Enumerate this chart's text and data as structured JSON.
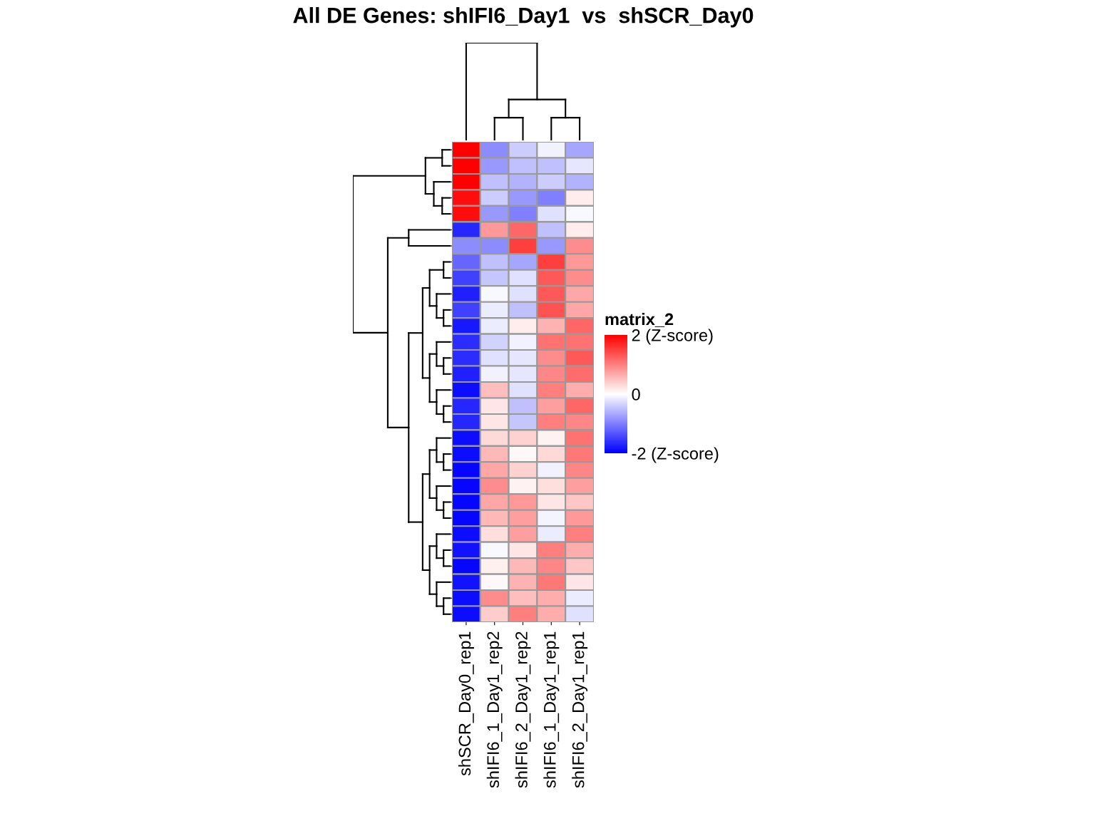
{
  "chart_data": {
    "type": "heatmap",
    "title": "All DE Genes: shIFI6_Day1  vs  shSCR_Day0",
    "legend_title": "matrix_2",
    "categories": [
      "shSCR_Day0_rep1",
      "shIFI6_1_Day1_rep2",
      "shIFI6_2_Day1_rep2",
      "shIFI6_1_Day1_rep1",
      "shIFI6_2_Day1_rep1"
    ],
    "y_categories": [
      null,
      null,
      null,
      null,
      null,
      null,
      null,
      null,
      null,
      null,
      null,
      null,
      null,
      null,
      null,
      null,
      null,
      null,
      null,
      null,
      null,
      null,
      null,
      null,
      null,
      null,
      null,
      null,
      null,
      null
    ],
    "colors": [
      "#0000ff",
      "#ffffff",
      "#ff0000"
    ],
    "clim": [
      -2,
      2
    ],
    "cticks": [
      {
        "value": -2,
        "label": "-2 (Z-score)"
      },
      0,
      {
        "value": 2,
        "label": "2 (Z-score)"
      }
    ],
    "cells": [
      [
        2.0,
        -0.9,
        -0.4,
        -0.1,
        -0.7
      ],
      [
        2.0,
        -0.8,
        -0.5,
        -0.5,
        -0.2
      ],
      [
        2.0,
        -0.5,
        -0.6,
        -0.4,
        -0.6
      ],
      [
        1.9,
        -0.4,
        -0.8,
        -1.0,
        0.15
      ],
      [
        1.9,
        -0.8,
        -1.0,
        -0.25,
        -0.05
      ],
      [
        -1.7,
        0.8,
        1.2,
        -0.5,
        0.15
      ],
      [
        -0.9,
        -0.9,
        1.5,
        -0.8,
        0.9
      ],
      [
        -1.2,
        -0.5,
        -0.7,
        1.5,
        0.8
      ],
      [
        -1.5,
        -0.45,
        -0.25,
        1.3,
        0.9
      ],
      [
        -1.75,
        -0.05,
        -0.25,
        1.3,
        0.7
      ],
      [
        -1.5,
        -0.15,
        -0.5,
        1.35,
        0.7
      ],
      [
        -1.8,
        -0.15,
        0.15,
        0.6,
        1.2
      ],
      [
        -1.65,
        -0.35,
        -0.1,
        1.1,
        1.1
      ],
      [
        -1.65,
        -0.25,
        -0.2,
        0.9,
        1.3
      ],
      [
        -1.75,
        -0.1,
        -0.2,
        0.95,
        1.15
      ],
      [
        -1.9,
        0.5,
        -0.25,
        1.0,
        0.65
      ],
      [
        -1.7,
        0.2,
        -0.5,
        0.75,
        1.2
      ],
      [
        -1.7,
        0.2,
        -0.45,
        1.0,
        0.95
      ],
      [
        -1.9,
        0.3,
        0.35,
        0.1,
        1.1
      ],
      [
        -1.9,
        0.55,
        0.05,
        0.3,
        1.05
      ],
      [
        -1.95,
        0.7,
        0.35,
        -0.1,
        0.95
      ],
      [
        -1.95,
        0.9,
        0.1,
        0.25,
        0.75
      ],
      [
        -1.95,
        0.7,
        0.8,
        0.2,
        0.45
      ],
      [
        -1.95,
        0.55,
        0.75,
        -0.08,
        0.8
      ],
      [
        -1.9,
        0.25,
        0.75,
        -0.15,
        1.0
      ],
      [
        -1.85,
        -0.05,
        0.2,
        1.0,
        0.65
      ],
      [
        -1.95,
        0.12,
        0.55,
        0.95,
        0.45
      ],
      [
        -1.85,
        0.05,
        0.6,
        1.05,
        0.2
      ],
      [
        -1.9,
        0.9,
        0.5,
        0.65,
        -0.15
      ],
      [
        -1.9,
        0.4,
        1.0,
        0.65,
        -0.25
      ]
    ]
  }
}
